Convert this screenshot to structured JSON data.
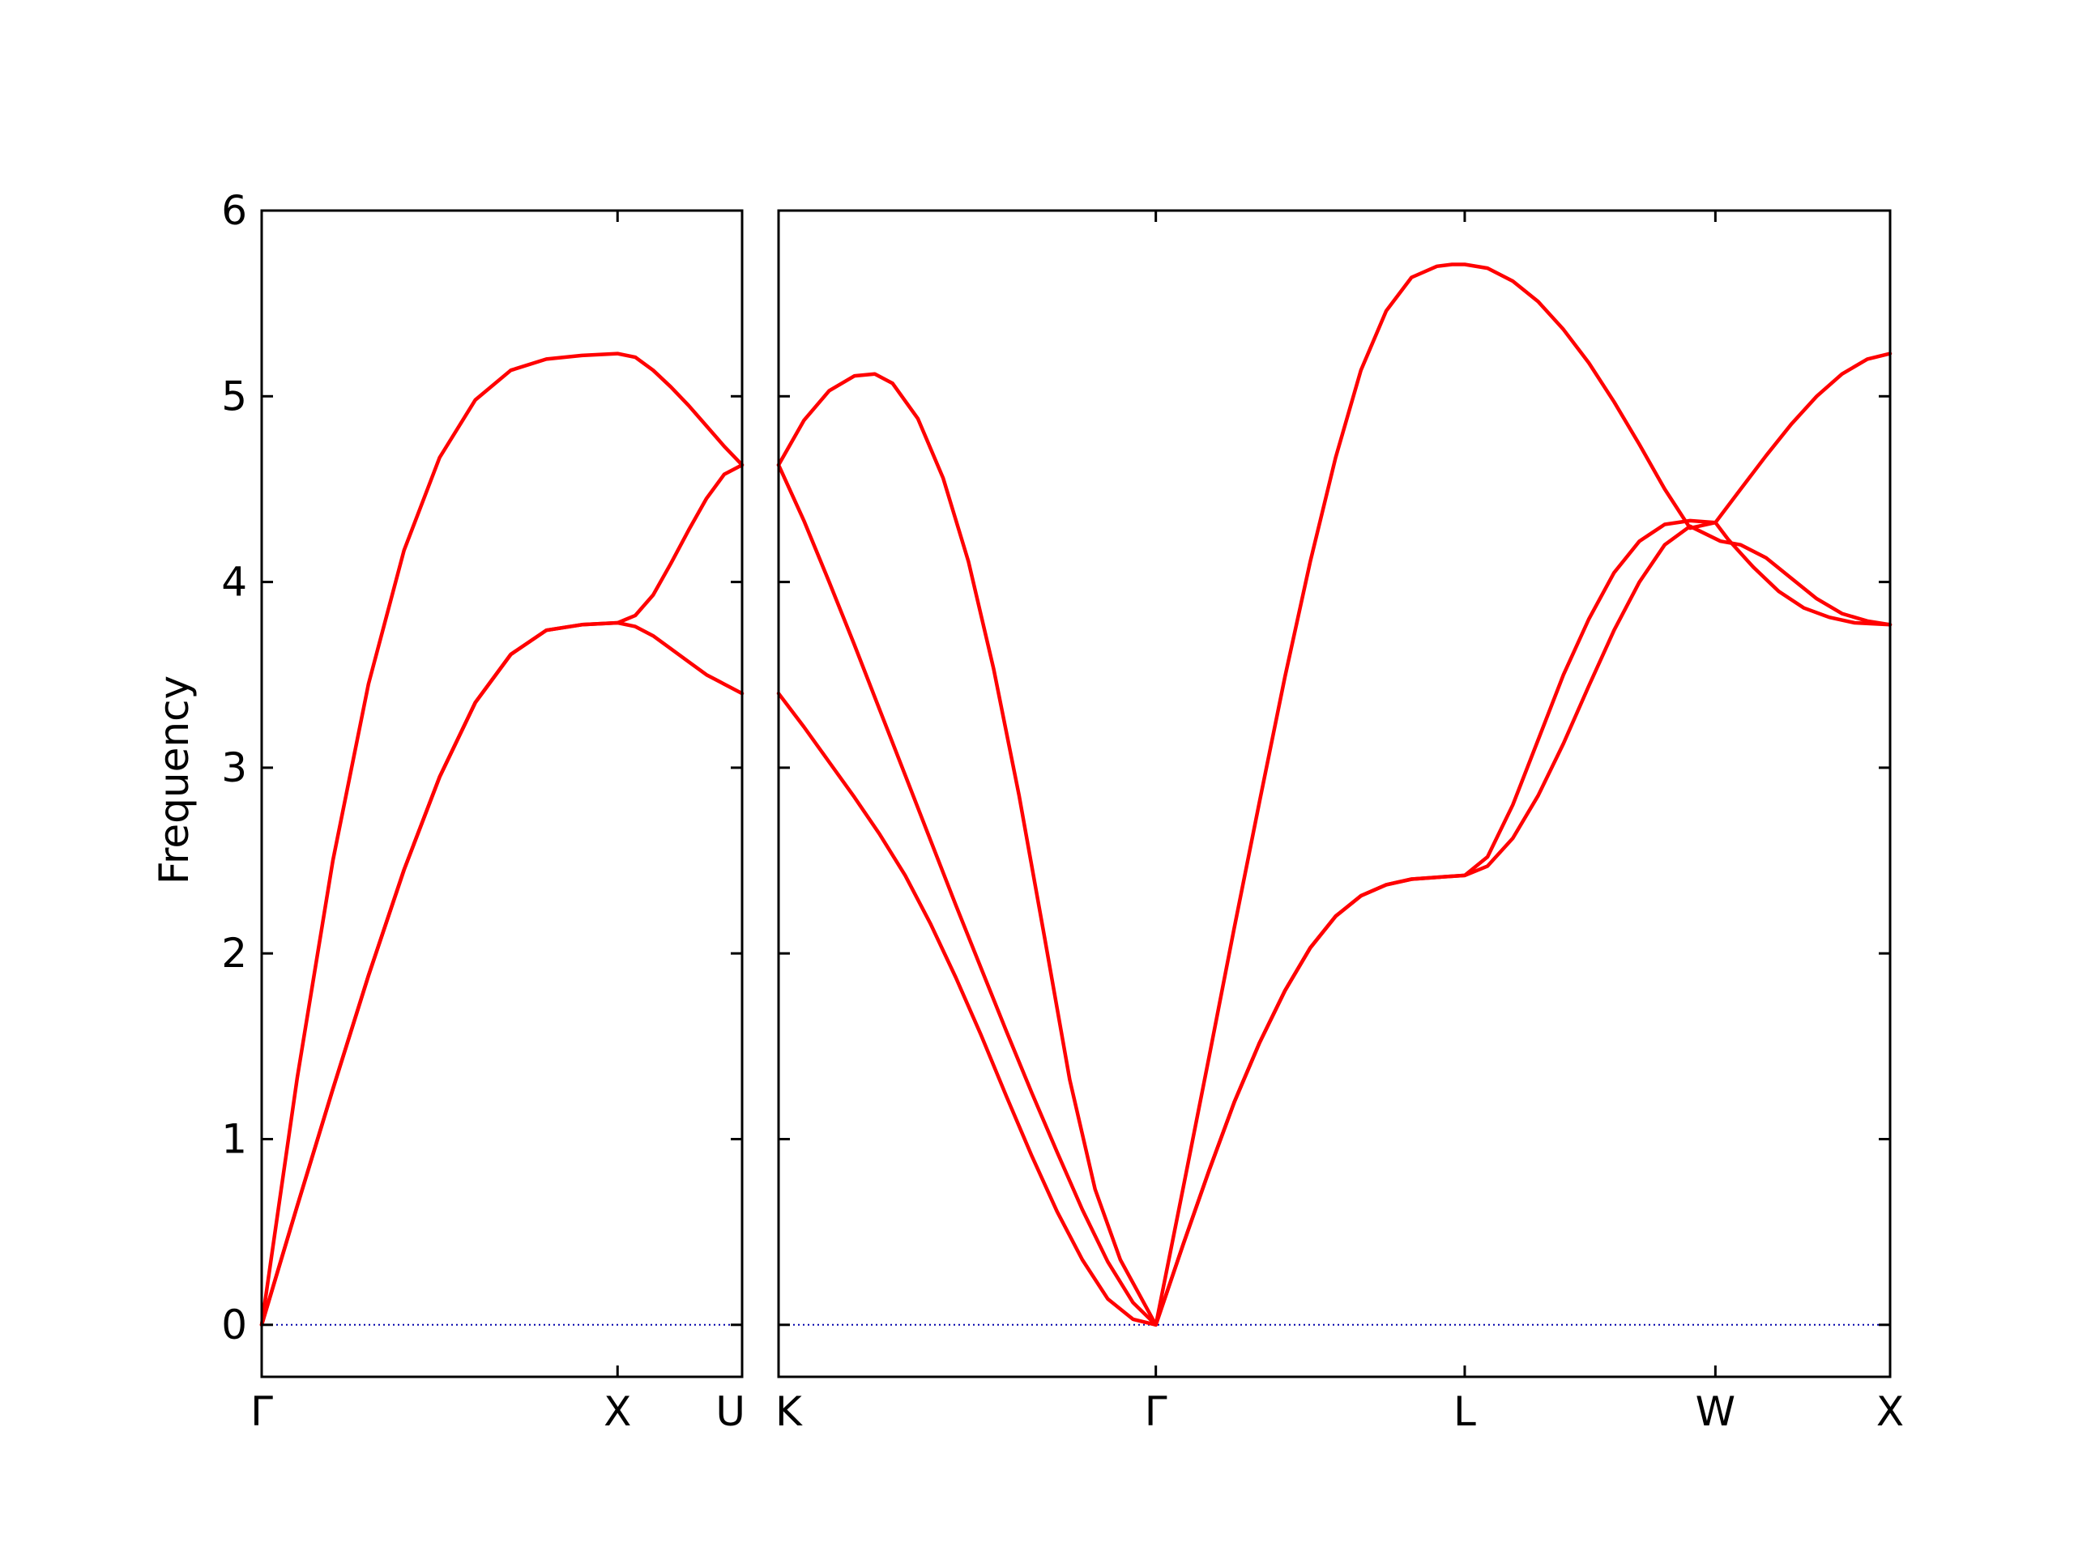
{
  "chart_data": {
    "type": "line",
    "title": "",
    "ylabel": "Frequency",
    "ylim": [
      -0.28,
      6
    ],
    "yticks": [
      0,
      1,
      2,
      3,
      4,
      5,
      6
    ],
    "grid": false,
    "colors": {
      "band": "#ff0000",
      "zero_line": "#0000aa",
      "axes": "#000000"
    },
    "panels": [
      {
        "name": "panel-1",
        "xlim": [
          0,
          1.35
        ],
        "xticks": [
          {
            "x": 0,
            "label": "Γ"
          },
          {
            "x": 1.0,
            "label": "X"
          },
          {
            "x": 1.35,
            "label": "U"
          }
        ],
        "series": [
          {
            "x": [
              0,
              0.1,
              0.2,
              0.3,
              0.4,
              0.5,
              0.6,
              0.7,
              0.8,
              0.9,
              1.0,
              1.05,
              1.1,
              1.15,
              1.2,
              1.25,
              1.3,
              1.35
            ],
            "values": [
              0,
              1.33,
              2.5,
              3.45,
              4.17,
              4.67,
              4.98,
              5.14,
              5.2,
              5.22,
              5.23,
              5.21,
              5.14,
              5.05,
              4.95,
              4.84,
              4.73,
              4.63
            ]
          },
          {
            "x": [
              0,
              0.1,
              0.2,
              0.3,
              0.4,
              0.5,
              0.6,
              0.7,
              0.8,
              0.9,
              1.0,
              1.05,
              1.1,
              1.15,
              1.2,
              1.25,
              1.3,
              1.35
            ],
            "values": [
              0,
              0.64,
              1.27,
              1.88,
              2.45,
              2.95,
              3.35,
              3.61,
              3.74,
              3.77,
              3.78,
              3.82,
              3.93,
              4.1,
              4.28,
              4.45,
              4.58,
              4.63
            ]
          },
          {
            "x": [
              0,
              0.1,
              0.2,
              0.3,
              0.4,
              0.5,
              0.6,
              0.7,
              0.8,
              0.9,
              1.0,
              1.05,
              1.1,
              1.15,
              1.2,
              1.25,
              1.3,
              1.35
            ],
            "values": [
              0,
              0.64,
              1.27,
              1.88,
              2.45,
              2.95,
              3.35,
              3.61,
              3.74,
              3.77,
              3.78,
              3.76,
              3.71,
              3.64,
              3.57,
              3.5,
              3.45,
              3.4
            ]
          }
        ]
      },
      {
        "name": "panel-2",
        "xlim": [
          0,
          4.39
        ],
        "xticks": [
          {
            "x": 0,
            "label": "K"
          },
          {
            "x": 1.49,
            "label": "Γ"
          },
          {
            "x": 2.71,
            "label": "L"
          },
          {
            "x": 3.7,
            "label": "W"
          },
          {
            "x": 4.39,
            "label": "X"
          }
        ],
        "series": [
          {
            "x": [
              0,
              0.1,
              0.2,
              0.3,
              0.38,
              0.45,
              0.55,
              0.65,
              0.75,
              0.85,
              0.95,
              1.05,
              1.15,
              1.25,
              1.35,
              1.49,
              1.6,
              1.7,
              1.8,
              1.9,
              2.0,
              2.1,
              2.2,
              2.3,
              2.4,
              2.5,
              2.6,
              2.66,
              2.71,
              2.8,
              2.9,
              3.0,
              3.1,
              3.2,
              3.3,
              3.4,
              3.5,
              3.6,
              3.7,
              3.8,
              3.9,
              4.0,
              4.1,
              4.2,
              4.3,
              4.39
            ],
            "values": [
              4.63,
              4.87,
              5.03,
              5.11,
              5.12,
              5.07,
              4.88,
              4.56,
              4.11,
              3.53,
              2.85,
              2.09,
              1.32,
              0.73,
              0.35,
              0,
              0.75,
              1.44,
              2.14,
              2.82,
              3.49,
              4.11,
              4.67,
              5.14,
              5.46,
              5.64,
              5.7,
              5.71,
              5.71,
              5.69,
              5.62,
              5.51,
              5.36,
              5.18,
              4.97,
              4.74,
              4.5,
              4.29,
              4.32,
              4.5,
              4.68,
              4.85,
              5.0,
              5.12,
              5.2,
              5.23
            ]
          },
          {
            "x": [
              0,
              0.1,
              0.2,
              0.3,
              0.4,
              0.5,
              0.6,
              0.7,
              0.8,
              0.9,
              1.0,
              1.1,
              1.2,
              1.3,
              1.4,
              1.49,
              1.6,
              1.7,
              1.8,
              1.9,
              2.0,
              2.1,
              2.2,
              2.3,
              2.4,
              2.5,
              2.6,
              2.71,
              2.8,
              2.9,
              3.0,
              3.1,
              3.2,
              3.3,
              3.4,
              3.5,
              3.6,
              3.7,
              3.75,
              3.85,
              3.95,
              4.05,
              4.15,
              4.25,
              4.39
            ],
            "values": [
              4.63,
              4.33,
              4.0,
              3.66,
              3.31,
              2.96,
              2.61,
              2.26,
              1.92,
              1.58,
              1.25,
              0.93,
              0.62,
              0.34,
              0.12,
              0,
              0.44,
              0.83,
              1.2,
              1.52,
              1.8,
              2.03,
              2.2,
              2.31,
              2.37,
              2.4,
              2.41,
              2.42,
              2.52,
              2.8,
              3.15,
              3.5,
              3.8,
              4.05,
              4.22,
              4.31,
              4.33,
              4.32,
              4.23,
              4.08,
              3.95,
              3.86,
              3.81,
              3.78,
              3.77
            ]
          },
          {
            "x": [
              0,
              0.1,
              0.2,
              0.3,
              0.4,
              0.5,
              0.6,
              0.7,
              0.8,
              0.9,
              1.0,
              1.1,
              1.2,
              1.3,
              1.4,
              1.49,
              1.6,
              1.7,
              1.8,
              1.9,
              2.0,
              2.1,
              2.2,
              2.3,
              2.4,
              2.5,
              2.6,
              2.71,
              2.8,
              2.9,
              3.0,
              3.1,
              3.2,
              3.3,
              3.4,
              3.5,
              3.6,
              3.72,
              3.8,
              3.9,
              4.0,
              4.1,
              4.2,
              4.3,
              4.39
            ],
            "values": [
              3.4,
              3.22,
              3.03,
              2.84,
              2.64,
              2.42,
              2.16,
              1.87,
              1.56,
              1.23,
              0.91,
              0.61,
              0.35,
              0.14,
              0.03,
              0,
              0.44,
              0.83,
              1.2,
              1.52,
              1.8,
              2.03,
              2.2,
              2.31,
              2.37,
              2.4,
              2.41,
              2.42,
              2.47,
              2.62,
              2.85,
              3.13,
              3.44,
              3.74,
              4.0,
              4.2,
              4.3,
              4.22,
              4.2,
              4.13,
              4.02,
              3.91,
              3.83,
              3.79,
              3.77
            ]
          }
        ]
      }
    ]
  }
}
